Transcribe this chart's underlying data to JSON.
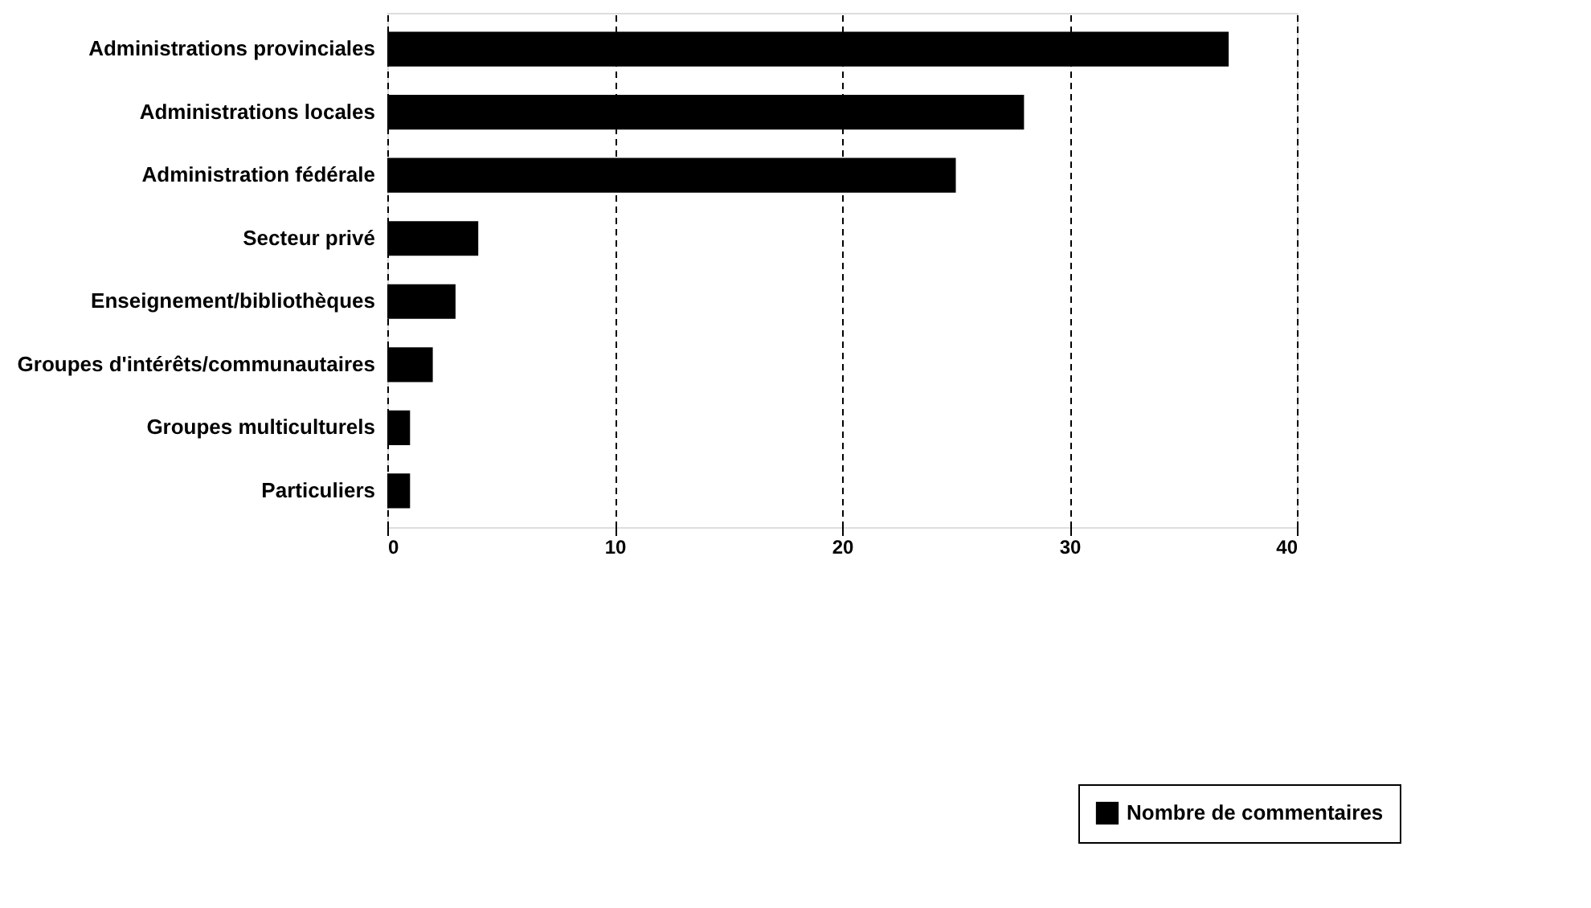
{
  "chart_data": {
    "type": "bar",
    "orientation": "horizontal",
    "categories": [
      "Administrations provinciales",
      "Administrations locales",
      "Administration fédérale",
      "Secteur privé",
      "Enseignement/bibliothèques",
      "Groupes d'intérêts/communautaires",
      "Groupes multiculturels",
      "Particuliers"
    ],
    "series": [
      {
        "name": "Nombre de commentaires",
        "color": "#000000",
        "values": [
          37,
          28,
          25,
          4,
          3,
          2,
          1,
          1
        ]
      }
    ],
    "xlim": [
      0,
      40
    ],
    "xticks": [
      0,
      10,
      20,
      30,
      40
    ],
    "grid": "x",
    "line_style": "dashed",
    "legend": "bottom right"
  }
}
